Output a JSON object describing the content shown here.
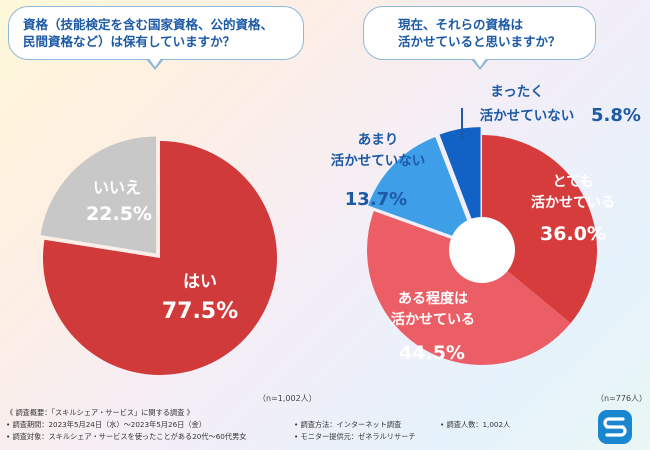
{
  "questions": {
    "q1": [
      "資格（技能検定を含む国家資格、公的資格、",
      "民間資格など）は保有していますか？"
    ],
    "q2": [
      "現在、それらの資格は",
      "活かせていると思いますか？"
    ]
  },
  "chart_data": [
    {
      "type": "pie",
      "title": "資格（技能検定を含む国家資格、公的資格、民間資格など）は保有していますか？",
      "sample": "（n=1,002人）",
      "slices": [
        {
          "label": "はい",
          "value": 77.5,
          "display": "77.5%",
          "color": "#d13a3a",
          "text_color": "#ffffff"
        },
        {
          "label": "いいえ",
          "value": 22.5,
          "display": "22.5%",
          "color": "#c8c8c8",
          "text_color": "#ffffff"
        }
      ]
    },
    {
      "type": "pie",
      "title": "現在、それらの資格は活かせていると思いますか？",
      "sample": "（n=776人）",
      "donut": true,
      "slices": [
        {
          "label": "とても活かせている",
          "value": 36.0,
          "display": "36.0%",
          "color": "#d63c3c",
          "text_color": "#ffffff"
        },
        {
          "label": "ある程度は活かせている",
          "value": 44.5,
          "display": "44.5%",
          "color": "#ec5e66",
          "text_color": "#ffffff"
        },
        {
          "label": "あまり活かせていない",
          "value": 13.7,
          "display": "13.7%",
          "color": "#3f9ee8",
          "text_color": "#1c5aa6"
        },
        {
          "label": "まったく活かせていない",
          "value": 5.8,
          "display": "5.8%",
          "color": "#1162c4",
          "text_color": "#1c5aa6"
        }
      ]
    }
  ],
  "footer": {
    "line1": "《 調査概要：「スキルシェア・サービス」に関する調査 》",
    "line2": "• 調査期間：2023年5月24日（水）～2023年5月26日（金）",
    "line3": "• 調査対象：スキルシェア・サービスを使ったことがある20代～60代男女",
    "method": "• 調査方法：インターネット調査",
    "monitor": "• モニター提供元：ゼネラルリサーチ",
    "count": "• 調査人数：1,002人"
  },
  "logo": {
    "name": "company-logo",
    "color": "#1a86cf"
  }
}
